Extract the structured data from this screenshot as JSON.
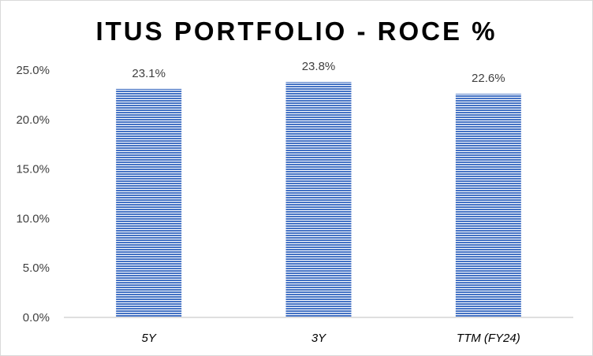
{
  "chart_data": {
    "type": "bar",
    "title": "ITUS PORTFOLIO - ROCE %",
    "xlabel": "",
    "ylabel": "",
    "categories": [
      "5Y",
      "3Y",
      "TTM (FY24)"
    ],
    "values": [
      23.1,
      23.8,
      22.6
    ],
    "data_labels": [
      "23.1%",
      "23.8%",
      "22.6%"
    ],
    "yticks": [
      0,
      5,
      10,
      15,
      20,
      25
    ],
    "ytick_labels": [
      "0.0%",
      "5.0%",
      "10.0%",
      "15.0%",
      "20.0%",
      "25.0%"
    ],
    "ylim": [
      0,
      25
    ],
    "grid": false,
    "legend": "none",
    "colors": {
      "bar": "#4472c4",
      "bar_stripe": "#ffffff",
      "axis": "#bfbfbf"
    }
  }
}
